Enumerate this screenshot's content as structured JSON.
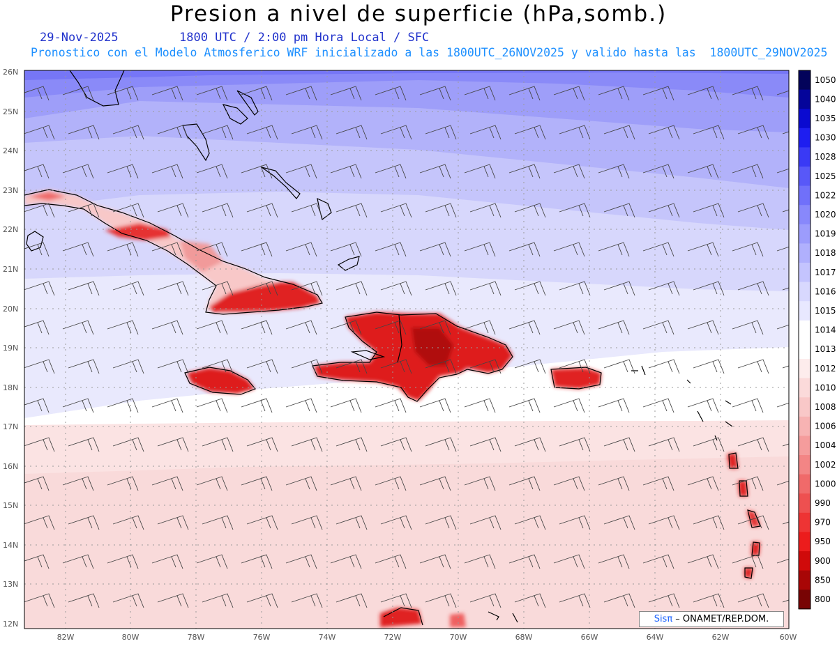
{
  "title": "Presion a nivel de superficie (hPa,somb.)",
  "date": "29-Nov-2025",
  "time_label": "1800 UTC / 2:00 pm Hora Local / SFC",
  "forecast_note": "Pronostico con el Modelo Atmosferico WRF inicializado a las 1800UTC_26NOV2025 y valido hasta las  1800UTC_29NOV2025",
  "credit": {
    "brand": "Sisπ",
    "org": " – ONAMET/REP.DOM."
  },
  "lat_labels": [
    "26N",
    "25N",
    "24N",
    "23N",
    "22N",
    "21N",
    "20N",
    "19N",
    "18N",
    "17N",
    "16N",
    "15N",
    "14N",
    "13N",
    "12N"
  ],
  "lon_labels": [
    "82W",
    "80W",
    "78W",
    "76W",
    "74W",
    "72W",
    "70W",
    "68W",
    "66W",
    "64W",
    "62W",
    "60W"
  ],
  "colorbar": {
    "levels": [
      "1050",
      "1040",
      "1035",
      "1030",
      "1028",
      "1025",
      "1022",
      "1020",
      "1019",
      "1018",
      "1017",
      "1016",
      "1015",
      "1014",
      "1013",
      "1012",
      "1010",
      "1008",
      "1006",
      "1004",
      "1002",
      "1000",
      "990",
      "970",
      "950",
      "900",
      "850",
      "800"
    ],
    "colors": [
      "#03035a",
      "#05059a",
      "#0a0ad0",
      "#1e1ef0",
      "#3a3af5",
      "#5858f8",
      "#7070fa",
      "#8888fb",
      "#9c9cfc",
      "#b0b0fd",
      "#c4c4fe",
      "#d8d8fe",
      "#e8e8ff",
      "#ffffff",
      "#ffffff",
      "#fdecec",
      "#fbdada",
      "#f9c8c8",
      "#f7b3b3",
      "#f59c9c",
      "#f38585",
      "#f06a6a",
      "#ee5050",
      "#ee3434",
      "#ec1c1c",
      "#d00a0a",
      "#a80606",
      "#780404"
    ]
  }
}
